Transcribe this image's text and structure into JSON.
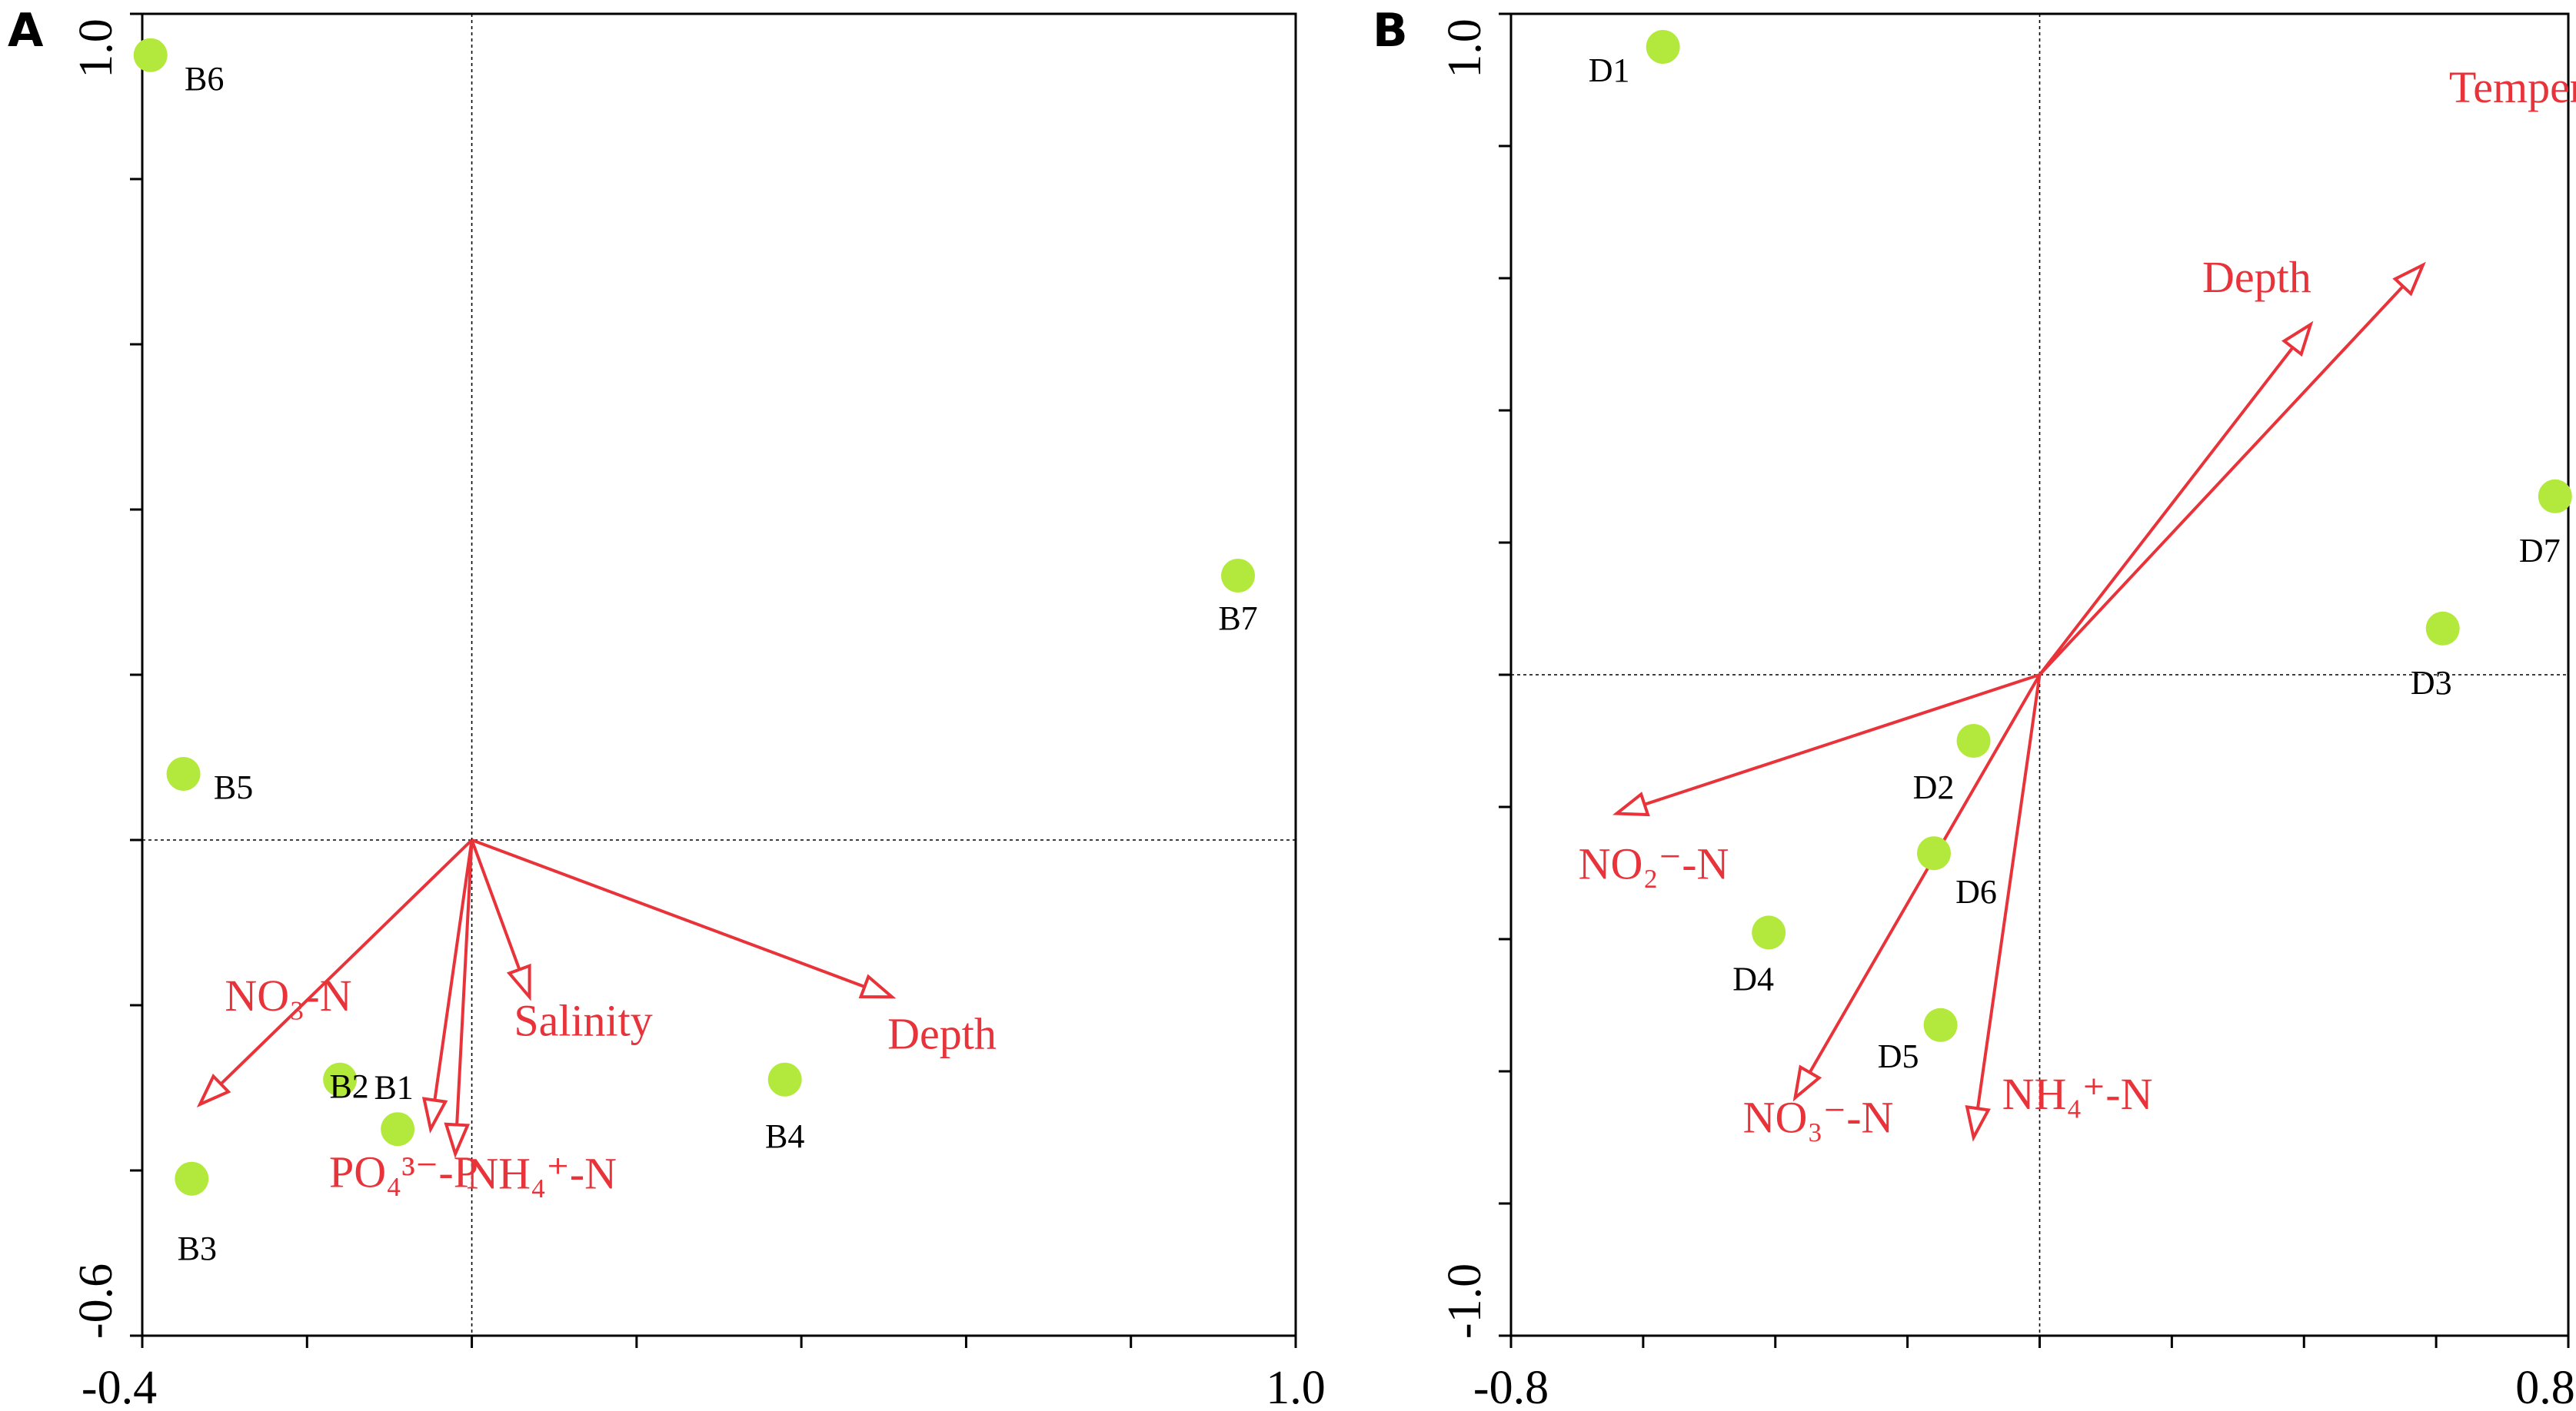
{
  "chart_data": [
    {
      "panel": "A",
      "type": "scatter",
      "xlim": [
        -0.4,
        1.0
      ],
      "ylim": [
        -0.6,
        1.0
      ],
      "xticks": [
        -0.4,
        1.0
      ],
      "yticks": [
        1.0,
        -0.6
      ],
      "sites": [
        {
          "label": "B6",
          "x": -0.39,
          "y": 0.95
        },
        {
          "label": "B7",
          "x": 0.93,
          "y": 0.32
        },
        {
          "label": "B5",
          "x": -0.35,
          "y": 0.08
        },
        {
          "label": "B2",
          "x": -0.16,
          "y": -0.29
        },
        {
          "label": "B1",
          "x": -0.09,
          "y": -0.35
        },
        {
          "label": "B3",
          "x": -0.34,
          "y": -0.41
        },
        {
          "label": "B4",
          "x": 0.38,
          "y": -0.29
        }
      ],
      "vectors": [
        {
          "label": "NO3-N",
          "x": -0.33,
          "y": -0.32
        },
        {
          "label": "PO4-P",
          "x": -0.05,
          "y": -0.35
        },
        {
          "label": "NH4-N",
          "x": -0.02,
          "y": -0.38
        },
        {
          "label": "Salinity",
          "x": 0.07,
          "y": -0.19
        },
        {
          "label": "Depth",
          "x": 0.51,
          "y": -0.19
        }
      ],
      "vector_label_text": {
        "NO3-N": "NO₃-N",
        "PO4-P": "PO₄³⁻-P",
        "NH4-N": "NH₄⁺-N",
        "Salinity": "Salinity",
        "Depth": "Depth"
      }
    },
    {
      "panel": "B",
      "type": "scatter",
      "xlim": [
        -0.8,
        0.8
      ],
      "ylim": [
        -1.0,
        1.0
      ],
      "xticks": [
        -0.8,
        0.8
      ],
      "yticks": [
        1.0,
        -1.0
      ],
      "sites": [
        {
          "label": "D1",
          "x": -0.57,
          "y": 0.95
        },
        {
          "label": "D7",
          "x": 0.78,
          "y": 0.27
        },
        {
          "label": "D3",
          "x": 0.61,
          "y": 0.07
        },
        {
          "label": "D2",
          "x": -0.1,
          "y": -0.1
        },
        {
          "label": "D6",
          "x": -0.16,
          "y": -0.27
        },
        {
          "label": "D4",
          "x": -0.41,
          "y": -0.39
        },
        {
          "label": "D5",
          "x": -0.15,
          "y": -0.53
        }
      ],
      "vectors": [
        {
          "label": "Depth",
          "x": 0.41,
          "y": 0.53
        },
        {
          "label": "Temperature",
          "x": 0.58,
          "y": 0.62
        },
        {
          "label": "NO2-N",
          "x": -0.64,
          "y": -0.21
        },
        {
          "label": "NO3-N",
          "x": -0.37,
          "y": -0.64
        },
        {
          "label": "NH4-N",
          "x": -0.1,
          "y": -0.7
        }
      ],
      "vector_label_text": {
        "Depth": "Depth",
        "Temperature": "Temperature",
        "NO2-N": "NO₂⁻-N",
        "NO3-N": "NO₃⁻-N",
        "NH4-N": "NH₄⁺-N"
      }
    }
  ],
  "colors": {
    "site": "#b3e83c",
    "vector": "#e8333a",
    "axis": "#000000"
  }
}
